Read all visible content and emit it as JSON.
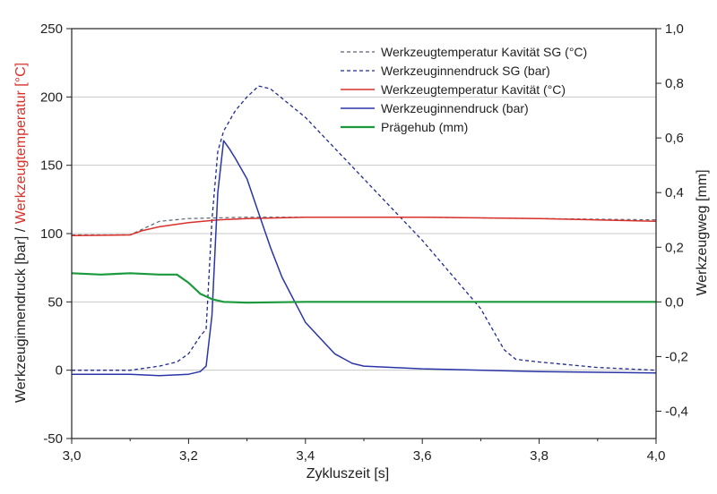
{
  "chart_data": {
    "type": "line",
    "xlabel": "Zykluszeit [s]",
    "ylabel_left_part1": "Werkzeuginnendruck [bar] / ",
    "ylabel_left_part2": "Werkzeugtemperatur [°C]",
    "ylabel_right": "Werkzeugweg [mm]",
    "xlim": [
      3.0,
      4.0
    ],
    "ylim_left": [
      -50,
      250
    ],
    "ylim_right": [
      -0.5,
      1.0
    ],
    "x_ticks": [
      3.0,
      3.2,
      3.4,
      3.6,
      3.8,
      4.0
    ],
    "x_tick_labels": [
      "3,0",
      "3,2",
      "3,4",
      "3,6",
      "3,8",
      "4,0"
    ],
    "y_left_ticks": [
      -50,
      0,
      50,
      100,
      150,
      200,
      250
    ],
    "y_left_tick_labels": [
      "-50",
      "0",
      "50",
      "100",
      "150",
      "200",
      "250"
    ],
    "y_right_ticks": [
      -0.4,
      -0.2,
      0.0,
      0.2,
      0.4,
      0.6,
      0.8,
      1.0
    ],
    "y_right_tick_labels": [
      "-0,4",
      "-0,2",
      "0,0",
      "0,2",
      "0,4",
      "0,6",
      "0,8",
      "1,0"
    ],
    "grid_y": true,
    "legend_position": "top-right",
    "series": [
      {
        "name": "Werkzeugtemperatur Kavität SG (°C)",
        "axis": "left",
        "color": "#5a6274",
        "dash": "4,3",
        "width": 1.2,
        "x": [
          3.0,
          3.1,
          3.12,
          3.15,
          3.2,
          3.3,
          3.4,
          3.6,
          3.8,
          4.0
        ],
        "y": [
          99,
          99,
          103,
          109,
          111,
          112,
          112,
          112,
          111,
          110
        ]
      },
      {
        "name": "Werkzeuginnendruck SG (bar)",
        "axis": "left",
        "color": "#1f2a8c",
        "dash": "4,3",
        "width": 1.3,
        "x": [
          3.0,
          3.05,
          3.1,
          3.15,
          3.18,
          3.2,
          3.22,
          3.23,
          3.24,
          3.25,
          3.26,
          3.28,
          3.3,
          3.32,
          3.34,
          3.4,
          3.5,
          3.6,
          3.7,
          3.74,
          3.76,
          3.8,
          3.9,
          4.0
        ],
        "y": [
          0,
          0,
          0,
          3,
          6,
          12,
          25,
          30,
          110,
          160,
          175,
          190,
          200,
          208,
          206,
          185,
          140,
          95,
          45,
          15,
          8,
          6,
          2,
          0
        ]
      },
      {
        "name": "Werkzeugtemperatur Kavität (°C)",
        "axis": "left",
        "color": "#d9302a",
        "dash": "",
        "width": 1.5,
        "x": [
          3.0,
          3.1,
          3.12,
          3.15,
          3.2,
          3.25,
          3.3,
          3.4,
          3.6,
          3.8,
          4.0
        ],
        "y": [
          98.5,
          99,
          102,
          105,
          108,
          110,
          111,
          112,
          112,
          111,
          109
        ]
      },
      {
        "name": "Werkzeuginnendruck (bar)",
        "axis": "left",
        "color": "#2a35a8",
        "dash": "",
        "width": 1.5,
        "x": [
          3.0,
          3.1,
          3.15,
          3.2,
          3.22,
          3.23,
          3.24,
          3.25,
          3.26,
          3.27,
          3.28,
          3.3,
          3.32,
          3.34,
          3.36,
          3.4,
          3.45,
          3.48,
          3.5,
          3.6,
          3.8,
          4.0
        ],
        "y": [
          -3,
          -3,
          -4,
          -3,
          -1,
          3,
          40,
          130,
          168,
          162,
          155,
          140,
          115,
          90,
          68,
          35,
          12,
          5,
          3,
          1,
          -1,
          -2
        ]
      },
      {
        "name": "Prägehub (mm)",
        "axis": "right",
        "color": "#1a9a3c",
        "dash": "",
        "width": 2.2,
        "x": [
          3.0,
          3.05,
          3.1,
          3.15,
          3.18,
          3.2,
          3.22,
          3.24,
          3.26,
          3.3,
          3.4,
          3.6,
          3.8,
          4.0
        ],
        "y": [
          0.105,
          0.1,
          0.105,
          0.1,
          0.1,
          0.07,
          0.03,
          0.01,
          0.0,
          -0.003,
          0.0,
          0.0,
          0.0,
          0.0
        ]
      }
    ]
  }
}
